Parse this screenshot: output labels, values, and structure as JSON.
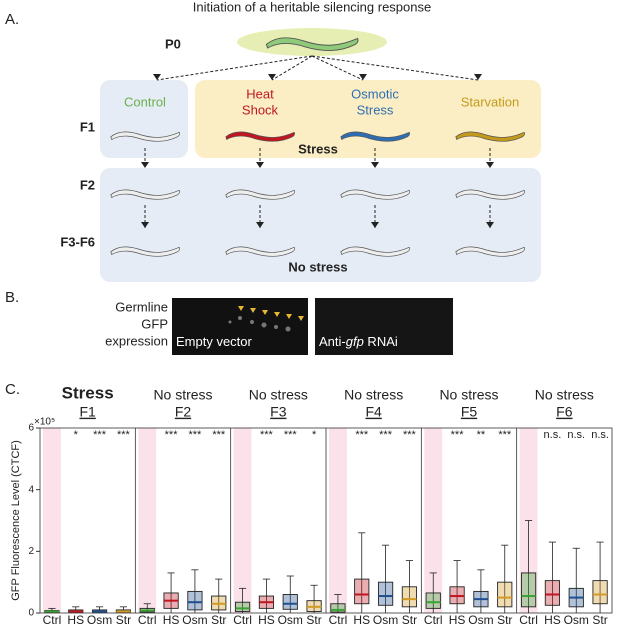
{
  "panel_a": {
    "label": "A.",
    "title": "Initiation of a heritable silencing response",
    "p0": "P0",
    "generations": [
      "F1",
      "F2",
      "F3-F6"
    ],
    "conditions": [
      {
        "lines": [
          "Control"
        ],
        "color": "#6ab04c"
      },
      {
        "lines": [
          "Heat",
          "Shock"
        ],
        "color": "#c0161f"
      },
      {
        "lines": [
          "Osmotic",
          "Stress"
        ],
        "color": "#2f6db3"
      },
      {
        "lines": [
          "Starvation"
        ],
        "color": "#c49a1c"
      }
    ],
    "stress_label": "Stress",
    "no_stress_label": "No stress"
  },
  "panel_b": {
    "label": "B.",
    "caption": [
      "Germline",
      "GFP",
      "expression"
    ],
    "images": [
      {
        "parts": [
          "Empty vector"
        ]
      },
      {
        "parts": [
          "Anti-",
          "gfp",
          " RNAi"
        ]
      }
    ]
  },
  "panel_c": {
    "label": "C."
  },
  "chart_data": {
    "type": "box",
    "y_label": "GFP Fluorescence Level (CTCF)",
    "y_multiplier": "×10⁵",
    "ylim": [
      0,
      6
    ],
    "yticks": [
      0,
      2,
      4,
      6
    ],
    "categories": [
      "Ctrl",
      "HS",
      "Osm",
      "Str"
    ],
    "colors": [
      "#3aa335",
      "#c0161f",
      "#1f4f8f",
      "#d39a24"
    ],
    "groups": [
      {
        "title": "Stress",
        "generation": "F1",
        "significance": [
          "*",
          "***",
          "***"
        ],
        "boxes": [
          {
            "min": 0,
            "q1": 0.02,
            "median": 0.05,
            "q3": 0.08,
            "max": 0.15
          },
          {
            "min": 0,
            "q1": 0.02,
            "median": 0.05,
            "q3": 0.1,
            "max": 0.2
          },
          {
            "min": 0,
            "q1": 0.02,
            "median": 0.05,
            "q3": 0.1,
            "max": 0.2
          },
          {
            "min": 0,
            "q1": 0.02,
            "median": 0.05,
            "q3": 0.1,
            "max": 0.2
          }
        ]
      },
      {
        "title": "No stress",
        "generation": "F2",
        "significance": [
          "***",
          "***",
          "***"
        ],
        "boxes": [
          {
            "min": 0,
            "q1": 0.03,
            "median": 0.08,
            "q3": 0.15,
            "max": 0.3
          },
          {
            "min": 0,
            "q1": 0.15,
            "median": 0.4,
            "q3": 0.65,
            "max": 1.3
          },
          {
            "min": 0,
            "q1": 0.1,
            "median": 0.35,
            "q3": 0.7,
            "max": 1.4
          },
          {
            "min": 0,
            "q1": 0.1,
            "median": 0.3,
            "q3": 0.55,
            "max": 1.1
          }
        ]
      },
      {
        "title": "No stress",
        "generation": "F3",
        "significance": [
          "***",
          "***",
          "*"
        ],
        "boxes": [
          {
            "min": 0,
            "q1": 0.05,
            "median": 0.15,
            "q3": 0.35,
            "max": 0.8
          },
          {
            "min": 0,
            "q1": 0.15,
            "median": 0.35,
            "q3": 0.55,
            "max": 1.1
          },
          {
            "min": 0,
            "q1": 0.12,
            "median": 0.3,
            "q3": 0.6,
            "max": 1.2
          },
          {
            "min": 0,
            "q1": 0.05,
            "median": 0.2,
            "q3": 0.4,
            "max": 0.9
          }
        ]
      },
      {
        "title": "No stress",
        "generation": "F4",
        "significance": [
          "***",
          "***",
          "***"
        ],
        "boxes": [
          {
            "min": 0,
            "q1": 0.03,
            "median": 0.1,
            "q3": 0.3,
            "max": 0.6
          },
          {
            "min": 0,
            "q1": 0.3,
            "median": 0.6,
            "q3": 1.1,
            "max": 2.6
          },
          {
            "min": 0,
            "q1": 0.25,
            "median": 0.55,
            "q3": 1.0,
            "max": 2.2
          },
          {
            "min": 0,
            "q1": 0.2,
            "median": 0.45,
            "q3": 0.85,
            "max": 1.7
          }
        ]
      },
      {
        "title": "No stress",
        "generation": "F5",
        "significance": [
          "***",
          "**",
          "***"
        ],
        "boxes": [
          {
            "min": 0,
            "q1": 0.15,
            "median": 0.35,
            "q3": 0.65,
            "max": 1.3
          },
          {
            "min": 0,
            "q1": 0.3,
            "median": 0.55,
            "q3": 0.85,
            "max": 1.7
          },
          {
            "min": 0,
            "q1": 0.2,
            "median": 0.45,
            "q3": 0.7,
            "max": 1.4
          },
          {
            "min": 0,
            "q1": 0.2,
            "median": 0.5,
            "q3": 1.0,
            "max": 2.2
          }
        ]
      },
      {
        "title": "No stress",
        "generation": "F6",
        "significance": [
          "n.s.",
          "n.s.",
          "n.s."
        ],
        "boxes": [
          {
            "min": 0,
            "q1": 0.2,
            "median": 0.55,
            "q3": 1.3,
            "max": 3.0
          },
          {
            "min": 0,
            "q1": 0.25,
            "median": 0.6,
            "q3": 1.05,
            "max": 2.3
          },
          {
            "min": 0,
            "q1": 0.2,
            "median": 0.5,
            "q3": 0.8,
            "max": 2.1
          },
          {
            "min": 0,
            "q1": 0.3,
            "median": 0.6,
            "q3": 1.05,
            "max": 2.3
          }
        ]
      }
    ]
  }
}
